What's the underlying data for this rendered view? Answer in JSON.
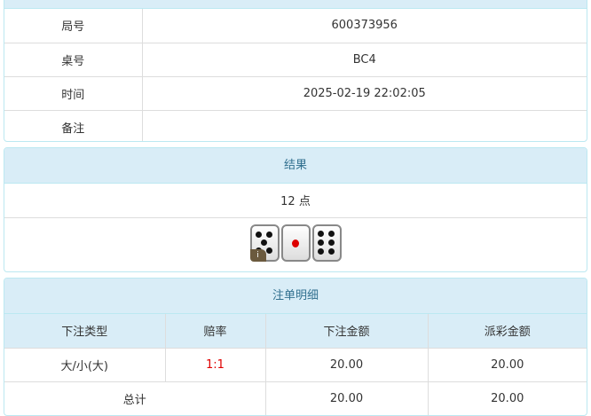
{
  "info": {
    "rows": [
      {
        "label": "局号",
        "value": "600373956"
      },
      {
        "label": "桌号",
        "value": "BC4"
      },
      {
        "label": "时间",
        "value": "2025-02-19 22:02:05"
      },
      {
        "label": "备注",
        "value": ""
      }
    ]
  },
  "result": {
    "title": "结果",
    "points": "12 点",
    "dice": [
      5,
      1,
      6
    ],
    "badge": "i"
  },
  "bets": {
    "title": "注单明细",
    "headers": [
      "下注类型",
      "赔率",
      "下注金额",
      "派彩金额"
    ],
    "rows": [
      {
        "type": "大/小(大)",
        "odds": "1:1",
        "amount": "20.00",
        "payout": "20.00"
      }
    ],
    "total": {
      "label": "总计",
      "amount": "20.00",
      "payout": "20.00"
    },
    "odds_color": "#e00000"
  }
}
